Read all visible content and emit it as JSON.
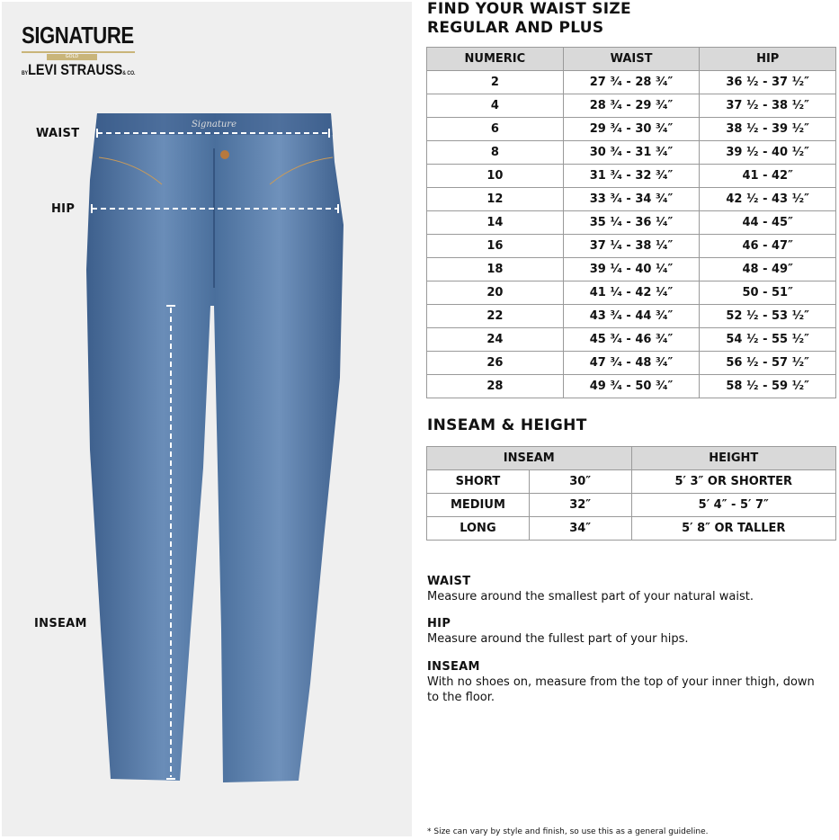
{
  "logo": {
    "line1": "SIGNATURE",
    "badge": "GOLD",
    "line2_prefix": "BY",
    "line2": "LEVI STRAUSS",
    "line2_suffix": "& CO."
  },
  "jeans_label": "Signature",
  "measure_labels": {
    "waist": "WAIST",
    "hip": "HIP",
    "inseam": "INSEAM"
  },
  "waist_title": [
    "FIND YOUR WAIST SIZE",
    "REGULAR AND PLUS"
  ],
  "waist_table": {
    "headers": [
      "NUMERIC",
      "WAIST",
      "HIP"
    ],
    "rows": [
      [
        "2",
        "27 ³⁄₄ - 28 ³⁄₄″",
        "36 ¹⁄₂ - 37 ¹⁄₂″"
      ],
      [
        "4",
        "28 ³⁄₄ - 29 ³⁄₄″",
        "37 ¹⁄₂ - 38 ¹⁄₂″"
      ],
      [
        "6",
        "29 ³⁄₄ - 30 ³⁄₄″",
        "38 ¹⁄₂ - 39 ¹⁄₂″"
      ],
      [
        "8",
        "30 ³⁄₄ - 31 ³⁄₄″",
        "39 ¹⁄₂ - 40 ¹⁄₂″"
      ],
      [
        "10",
        "31 ³⁄₄ - 32 ³⁄₄″",
        "41 - 42″"
      ],
      [
        "12",
        "33 ³⁄₄ - 34 ³⁄₄″",
        "42 ¹⁄₂ - 43 ¹⁄₂″"
      ],
      [
        "14",
        "35 ¹⁄₄ - 36 ¹⁄₄″",
        "44 - 45″"
      ],
      [
        "16",
        "37 ¹⁄₄ - 38 ¹⁄₄″",
        "46 - 47″"
      ],
      [
        "18",
        "39 ¹⁄₄ - 40 ¹⁄₄″",
        "48 - 49″"
      ],
      [
        "20",
        "41 ¹⁄₄ - 42 ¹⁄₄″",
        "50 - 51″"
      ],
      [
        "22",
        "43 ³⁄₄ - 44 ³⁄₄″",
        "52 ¹⁄₂ - 53 ¹⁄₂″"
      ],
      [
        "24",
        "45 ³⁄₄ - 46 ³⁄₄″",
        "54 ¹⁄₂ - 55 ¹⁄₂″"
      ],
      [
        "26",
        "47 ³⁄₄ - 48 ³⁄₄″",
        "56 ¹⁄₂ - 57 ¹⁄₂″"
      ],
      [
        "28",
        "49 ³⁄₄ - 50 ³⁄₄″",
        "58 ¹⁄₂ - 59 ¹⁄₂″"
      ]
    ]
  },
  "inseam_title": "INSEAM & HEIGHT",
  "inseam_table": {
    "headers": [
      "INSEAM",
      "HEIGHT"
    ],
    "rows": [
      [
        "SHORT",
        "30″",
        "5′ 3″ OR SHORTER"
      ],
      [
        "MEDIUM",
        "32″",
        "5′ 4″ - 5′ 7″"
      ],
      [
        "LONG",
        "34″",
        "5′ 8″ OR TALLER"
      ]
    ]
  },
  "guide": [
    {
      "title": "WAIST",
      "text": "Measure around the smallest part of your natural waist."
    },
    {
      "title": "HIP",
      "text": "Measure around the fullest part of your hips."
    },
    {
      "title": "INSEAM",
      "text": "With no shoes on, measure from the top of your inner thigh, down to the floor."
    }
  ],
  "footnote": "* Size can vary by style and finish, so use this as a general guideline.",
  "colors": {
    "panel": "#efefef",
    "denim": "#4a6f9c",
    "header_fill": "#d9d9d9",
    "gold": "#c9b57a"
  }
}
